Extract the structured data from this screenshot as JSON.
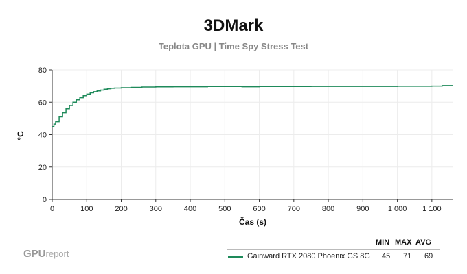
{
  "chart_data": {
    "type": "line",
    "title": "3DMark",
    "subtitle": "Teplota GPU | Time Spy Stress Test",
    "xlabel": "Čas (s)",
    "ylabel": "°C",
    "xlim": [
      0,
      1160
    ],
    "ylim": [
      0,
      80
    ],
    "x_ticks": [
      0,
      100,
      200,
      300,
      400,
      500,
      600,
      700,
      800,
      900,
      1000,
      1100
    ],
    "x_tick_labels": [
      "0",
      "100",
      "200",
      "300",
      "400",
      "500",
      "600",
      "700",
      "800",
      "900",
      "1 000",
      "1 100"
    ],
    "y_ticks": [
      0,
      20,
      40,
      60,
      80
    ],
    "y_tick_labels": [
      "0",
      "20",
      "40",
      "60",
      "80"
    ],
    "grid": true,
    "legend_position": "bottom-right",
    "legend_headers": [
      "MIN",
      "MAX",
      "AVG"
    ],
    "series": [
      {
        "name": "Gainward RTX 2080 Phoenix GS 8G",
        "color": "#1e8a5a",
        "min": "45",
        "max": "71",
        "avg": "69",
        "x": [
          0,
          5,
          10,
          20,
          30,
          40,
          50,
          60,
          70,
          80,
          90,
          100,
          110,
          120,
          130,
          140,
          150,
          160,
          170,
          180,
          200,
          230,
          260,
          300,
          350,
          400,
          450,
          500,
          550,
          600,
          650,
          700,
          750,
          800,
          850,
          900,
          950,
          1000,
          1050,
          1100,
          1130,
          1160
        ],
        "y": [
          45,
          46.5,
          48,
          51,
          53.5,
          56,
          58,
          60,
          61.5,
          62.8,
          64,
          65,
          65.8,
          66.5,
          67,
          67.5,
          68,
          68.3,
          68.6,
          68.8,
          69,
          69.2,
          69.4,
          69.5,
          69.6,
          69.6,
          69.7,
          69.7,
          69.6,
          69.7,
          69.7,
          69.7,
          69.8,
          69.8,
          69.8,
          69.8,
          69.8,
          69.9,
          69.9,
          70,
          70.3,
          70.5
        ]
      }
    ]
  },
  "brand": {
    "main": "GPU",
    "suffix": "report"
  }
}
